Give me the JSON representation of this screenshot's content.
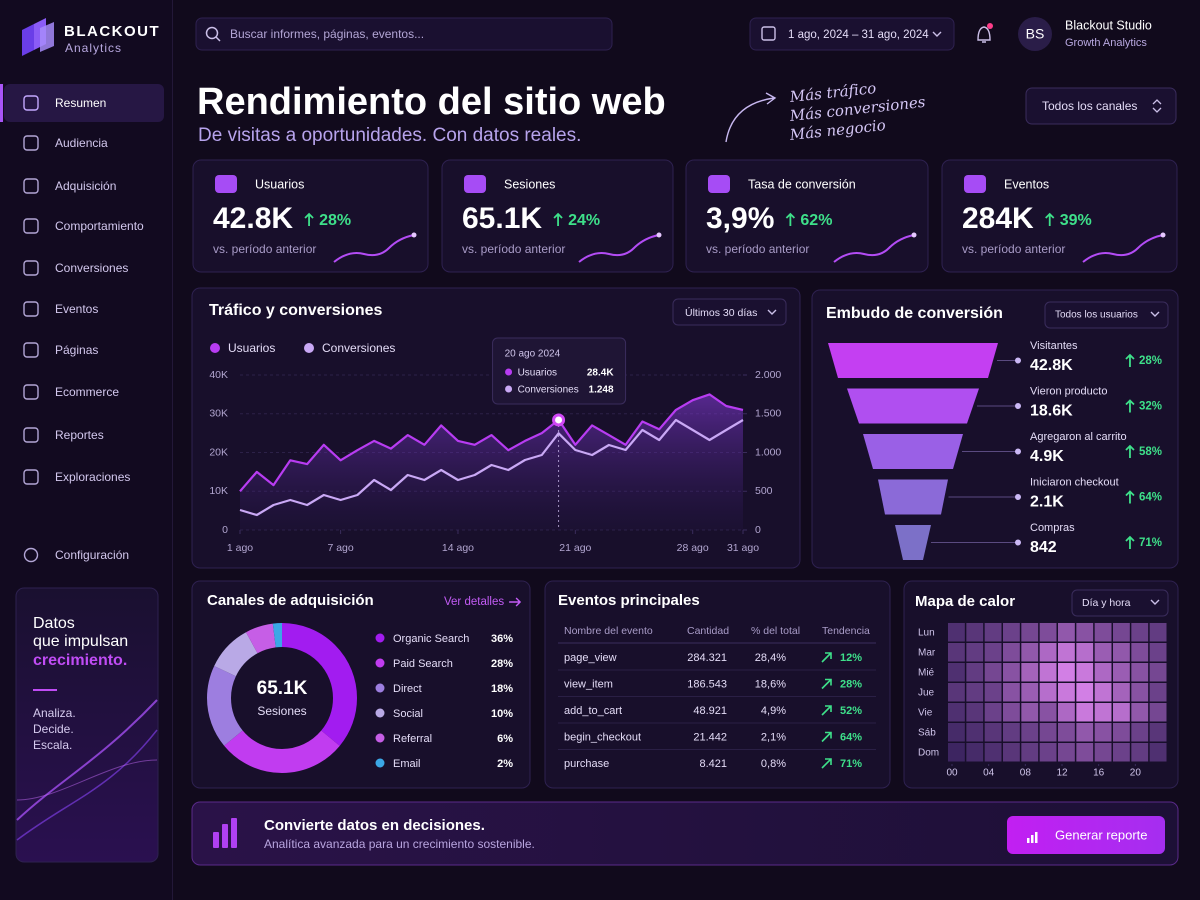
{
  "sidebar": {
    "brand": {
      "name": "BLACKOUT",
      "sub": "Analytics"
    },
    "nav": [
      "Resumen",
      "Audiencia",
      "Adquisición",
      "Comportamiento",
      "Conversiones",
      "Eventos",
      "Páginas",
      "Ecommerce",
      "Reportes",
      "Exploraciones"
    ],
    "active": 0,
    "settings": "Configuración",
    "promo": {
      "lines": [
        "Datos",
        "que impulsan"
      ],
      "highlight": "crecimiento.",
      "taglines": [
        "Analiza.",
        "Decide.",
        "Escala."
      ]
    }
  },
  "topbar": {
    "search_placeholder": "Buscar informes, páginas, eventos...",
    "date_range": "1 ago, 2024 – 31 ago, 2024",
    "user": {
      "initials": "BS",
      "name": "Blackout Studio",
      "role": "Growth Analytics"
    }
  },
  "header": {
    "title": "Rendimiento del sitio web",
    "subtitle": "De visitas a oportunidades. Con datos reales.",
    "notes": [
      "Más tráfico",
      "Más conversiones",
      "Más negocio"
    ],
    "channel_filter": "Todos los canales"
  },
  "kpis": [
    {
      "label": "Usuarios",
      "value": "42.8K",
      "change": "28%",
      "note": "vs. período anterior"
    },
    {
      "label": "Sesiones",
      "value": "65.1K",
      "change": "24%",
      "note": "vs. período anterior"
    },
    {
      "label": "Tasa de conversión",
      "value": "3,9%",
      "change": "62%",
      "note": "vs. período anterior"
    },
    {
      "label": "Eventos",
      "value": "284K",
      "change": "39%",
      "note": "vs. período anterior"
    }
  ],
  "traffic": {
    "type": "line",
    "title": "Tráfico y conversiones",
    "filter": "Últimos 30 días",
    "x": [
      1,
      2,
      3,
      4,
      5,
      6,
      7,
      8,
      9,
      10,
      11,
      12,
      13,
      14,
      15,
      16,
      17,
      18,
      19,
      20,
      21,
      22,
      23,
      24,
      25,
      26,
      27,
      28,
      29,
      30,
      31
    ],
    "xlim": [
      1,
      31
    ],
    "xticks": [
      {
        "value": 1,
        "label": "1 ago"
      },
      {
        "value": 7,
        "label": "7 ago"
      },
      {
        "value": 14,
        "label": "14 ago"
      },
      {
        "value": 21,
        "label": "21 ago"
      },
      {
        "value": 28,
        "label": "28 ago"
      },
      {
        "value": 31,
        "label": "31 ago"
      }
    ],
    "ylim": [
      0,
      40000
    ],
    "yticks": [
      0,
      {
        "value": 10000,
        "label": "10K"
      },
      {
        "value": 20000,
        "label": "20K"
      },
      {
        "value": 30000,
        "label": "30K"
      },
      {
        "value": 40000,
        "label": "40K"
      }
    ],
    "y2lim": [
      0,
      2000
    ],
    "y2ticks": [
      0,
      500,
      {
        "value": 1000,
        "label": "1.000"
      },
      {
        "value": 1500,
        "label": "1.500"
      },
      {
        "value": 2000,
        "label": "2.000"
      }
    ],
    "grid": true,
    "series": [
      {
        "name": "Usuarios",
        "color": "#b83cf2",
        "values": [
          10000,
          15000,
          11600,
          18000,
          17000,
          22000,
          18000,
          20600,
          23000,
          21000,
          24500,
          22000,
          27000,
          23000,
          22000,
          24500,
          20600,
          23000,
          25000,
          28400,
          22000,
          27000,
          24500,
          22000,
          28000,
          26000,
          31000,
          33500,
          35000,
          32000,
          31000
        ]
      },
      {
        "name": "Conversiones",
        "color": "#c9a8f5",
        "axis": "y2",
        "values": [
          258,
          194,
          323,
          387,
          323,
          452,
          387,
          452,
          645,
          516,
          710,
          645,
          774,
          645,
          710,
          839,
          774,
          903,
          968,
          1248,
          1032,
          968,
          1097,
          1032,
          1290,
          1161,
          1419,
          1290,
          1161,
          1290,
          1419
        ]
      }
    ],
    "tooltip": {
      "x": 20,
      "date": "20 ago 2024",
      "value_labels": [
        "28.4K",
        "1.248"
      ]
    }
  },
  "funnel": {
    "title": "Embudo de conversión",
    "filter": "Todos los usuarios",
    "stages": [
      {
        "name": "Visitantes",
        "value": "42.8K",
        "change": "28%",
        "color": "#c43ff2"
      },
      {
        "name": "Vieron producto",
        "value": "18.6K",
        "change": "32%",
        "color": "#b04ff0"
      },
      {
        "name": "Agregaron al carrito",
        "value": "4.9K",
        "change": "58%",
        "color": "#9a60e6"
      },
      {
        "name": "Iniciaron checkout",
        "value": "2.1K",
        "change": "64%",
        "color": "#8b6ad8"
      },
      {
        "name": "Compras",
        "value": "842",
        "change": "71%",
        "color": "#7c70c8"
      }
    ]
  },
  "channels": {
    "type": "donut",
    "title": "Canales de adquisición",
    "link": "Ver detalles",
    "center_value": "65.1K",
    "center_label": "Sesiones",
    "categories": [
      "Organic Search",
      "Paid Search",
      "Direct",
      "Social",
      "Referral",
      "Email"
    ],
    "values": [
      36,
      28,
      18,
      10,
      6,
      2
    ],
    "value_labels": [
      "36%",
      "28%",
      "18%",
      "10%",
      "6%",
      "2%"
    ],
    "colors": [
      "#a21cf0",
      "#c13cf0",
      "#9d7ee0",
      "#b9a9e6",
      "#c65ee6",
      "#3ba7e6"
    ]
  },
  "events": {
    "title": "Eventos principales",
    "columns": [
      "Nombre del evento",
      "Cantidad",
      "% del total",
      "Tendencia"
    ],
    "rows": [
      [
        "page_view",
        "284.321",
        "28,4%",
        "12%"
      ],
      [
        "view_item",
        "186.543",
        "18,6%",
        "28%"
      ],
      [
        "add_to_cart",
        "48.921",
        "4,9%",
        "52%"
      ],
      [
        "begin_checkout",
        "21.442",
        "2,1%",
        "64%"
      ],
      [
        "purchase",
        "8.421",
        "0,8%",
        "71%"
      ]
    ]
  },
  "heatmap": {
    "type": "heatmap",
    "title": "Mapa de calor",
    "filter": "Día y hora",
    "rows": [
      "Lun",
      "Mar",
      "Mié",
      "Jue",
      "Vie",
      "Sáb",
      "Dom"
    ],
    "xlim": [
      0,
      24
    ],
    "xticks": [
      {
        "value": 0,
        "label": "00"
      },
      {
        "value": 4,
        "label": "04"
      },
      {
        "value": 8,
        "label": "08"
      },
      12,
      16,
      20
    ],
    "color_range": [
      "#2a1a50",
      "#e58af5"
    ],
    "vlim": [
      0,
      100
    ],
    "values": [
      [
        20,
        25,
        30,
        35,
        40,
        45,
        55,
        50,
        45,
        40,
        35,
        30
      ],
      [
        25,
        30,
        35,
        45,
        55,
        70,
        80,
        75,
        60,
        55,
        45,
        35
      ],
      [
        20,
        30,
        40,
        50,
        65,
        80,
        90,
        85,
        70,
        60,
        50,
        40
      ],
      [
        25,
        30,
        35,
        50,
        60,
        75,
        85,
        90,
        80,
        65,
        50,
        35
      ],
      [
        20,
        25,
        35,
        45,
        55,
        50,
        70,
        85,
        80,
        75,
        55,
        40
      ],
      [
        15,
        20,
        25,
        30,
        35,
        40,
        45,
        55,
        50,
        45,
        35,
        25
      ],
      [
        10,
        15,
        20,
        25,
        30,
        35,
        40,
        45,
        40,
        35,
        30,
        20
      ]
    ]
  },
  "banner": {
    "title": "Convierte datos en decisiones.",
    "subtitle": "Analítica avanzada para un crecimiento sostenible.",
    "button": "Generar reporte"
  }
}
